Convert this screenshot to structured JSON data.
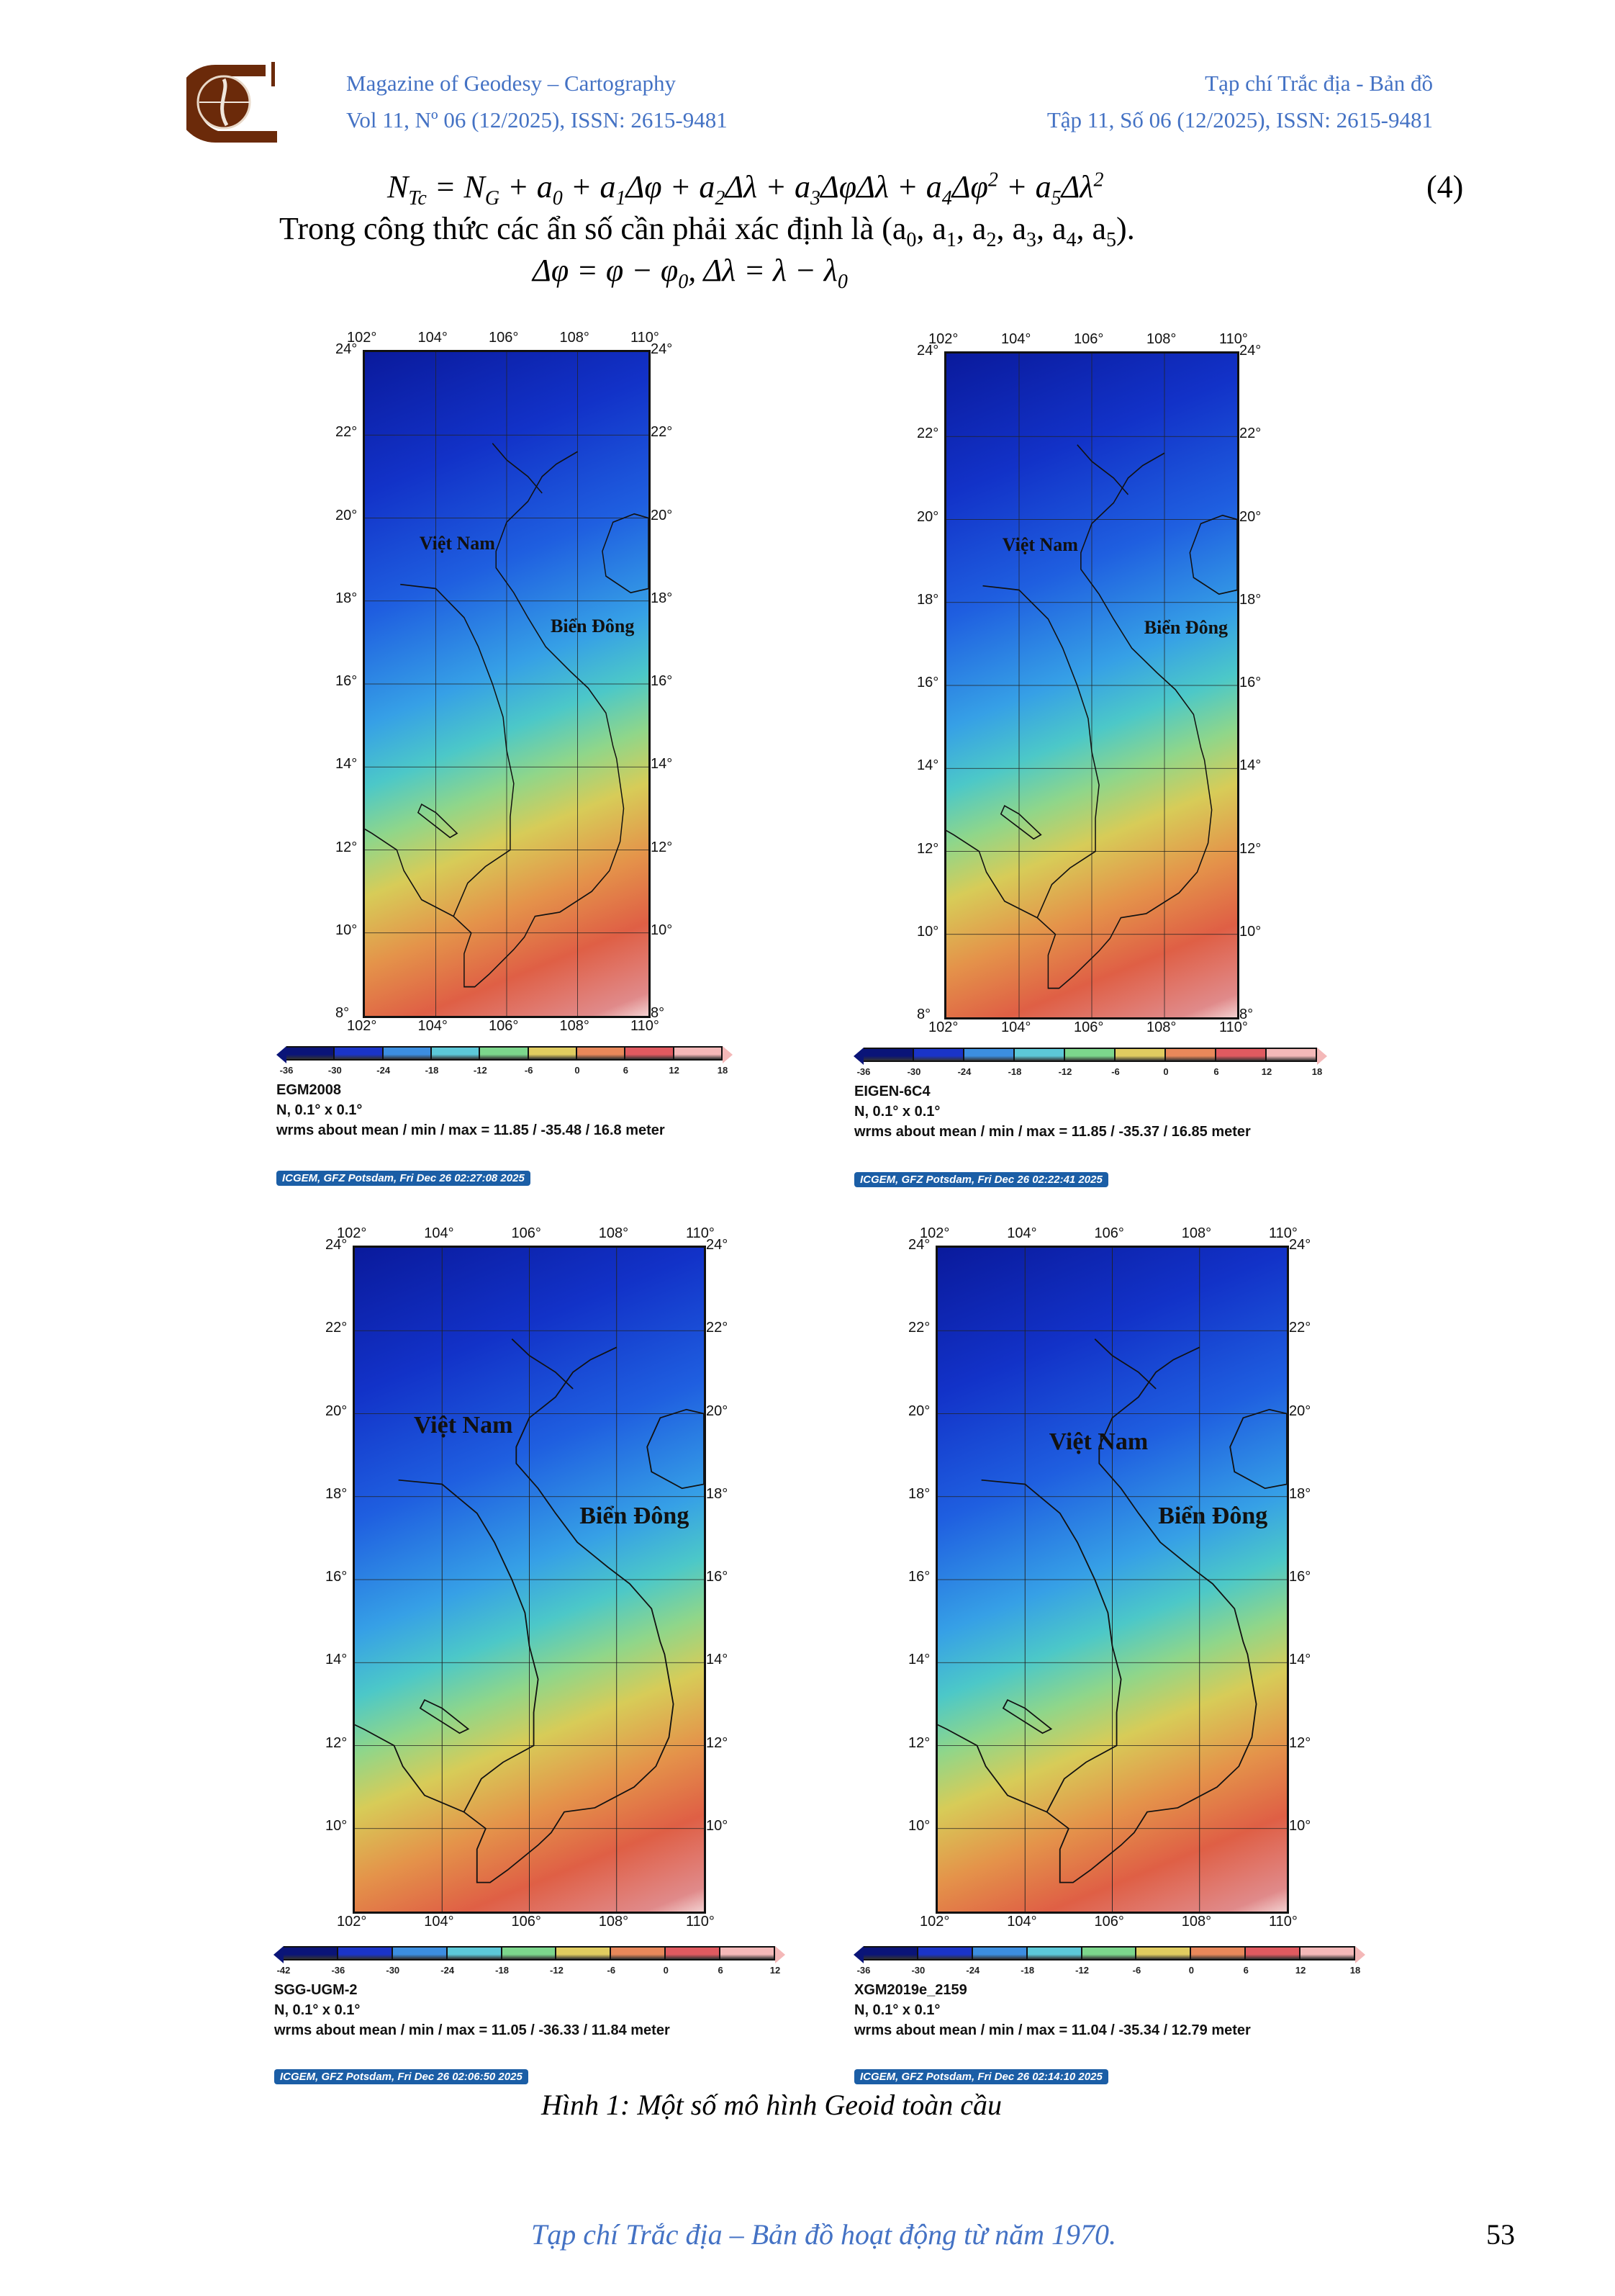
{
  "header": {
    "left_line1": "Magazine of Geodesy – Cartography",
    "left_line2": "Vol 11, Nº 06 (12/2025), ISSN: 2615-9481",
    "right_line1": "Tạp chí Trắc địa - Bản đồ",
    "right_line2": "Tập 11, Số 06 (12/2025), ISSN: 2615-9481"
  },
  "equation": {
    "parts": [
      [
        "N",
        "Tc",
        ""
      ],
      [
        " = N",
        "G",
        ""
      ],
      [
        " + a",
        "0",
        ""
      ],
      [
        " + a",
        "1",
        ""
      ],
      [
        "Δφ",
        "",
        ""
      ],
      [
        " + a",
        "2",
        ""
      ],
      [
        "Δλ",
        "",
        ""
      ],
      [
        " + a",
        "3",
        ""
      ],
      [
        "ΔφΔλ",
        "",
        ""
      ],
      [
        " + a",
        "4",
        ""
      ],
      [
        "Δφ",
        "",
        "2"
      ],
      [
        " + a",
        "5",
        ""
      ],
      [
        "Δλ",
        "",
        "2"
      ]
    ],
    "number": "(4)"
  },
  "body_text": {
    "parts": [
      [
        "Trong công thức các ẩn số cần phải xác định là (a",
        "0"
      ],
      [
        ", a",
        "1"
      ],
      [
        ", a",
        "2"
      ],
      [
        ", a",
        "3"
      ],
      [
        ", a",
        "4"
      ],
      [
        ", a",
        "5"
      ],
      [
        ").",
        ""
      ]
    ]
  },
  "delta_eq": {
    "parts": [
      [
        "Δφ = φ − φ",
        "0"
      ],
      [
        ", Δλ = λ − λ",
        "0"
      ]
    ]
  },
  "maps": [
    {
      "model": "EGM2008",
      "resolution": "N, 0.1° x 0.1°",
      "stats": "wrms about mean / min / max = 11.85 / -35.48 / 16.8 meter",
      "badge": "ICGEM, GFZ Potsdam, Fri Dec 26 02:27:08 2025",
      "label_vn": "Việt Nam",
      "label_sea": "Biển Đông",
      "lon_ticks": [
        "102°",
        "104°",
        "106°",
        "108°",
        "110°"
      ],
      "lat_ticks": [
        "24°",
        "22°",
        "20°",
        "18°",
        "16°",
        "14°",
        "12°",
        "10°",
        "8°"
      ],
      "colorbar_ticks": [
        "-36",
        "-30",
        "-24",
        "-18",
        "-12",
        "-6",
        "0",
        "6",
        "12",
        "18"
      ]
    },
    {
      "model": "EIGEN-6C4",
      "resolution": "N, 0.1° x 0.1°",
      "stats": "wrms about mean / min / max = 11.85 / -35.37 / 16.85 meter",
      "badge": "ICGEM, GFZ Potsdam, Fri Dec 26 02:22:41 2025",
      "label_vn": "Việt Nam",
      "label_sea": "Biển Đông",
      "lon_ticks": [
        "102°",
        "104°",
        "106°",
        "108°",
        "110°"
      ],
      "lat_ticks": [
        "24°",
        "22°",
        "20°",
        "18°",
        "16°",
        "14°",
        "12°",
        "10°",
        "8°"
      ],
      "colorbar_ticks": [
        "-36",
        "-30",
        "-24",
        "-18",
        "-12",
        "-6",
        "0",
        "6",
        "12",
        "18"
      ]
    },
    {
      "model": "SGG-UGM-2",
      "resolution": "N, 0.1° x 0.1°",
      "stats": "wrms about mean / min / max = 11.05 / -36.33 / 11.84 meter",
      "badge": "ICGEM, GFZ Potsdam, Fri Dec 26 02:06:50 2025",
      "label_vn": "Việt Nam",
      "label_sea": "Biển Đông",
      "lon_ticks": [
        "102°",
        "104°",
        "106°",
        "108°",
        "110°"
      ],
      "lat_ticks": [
        "24°",
        "22°",
        "20°",
        "18°",
        "16°",
        "14°",
        "12°",
        "10°"
      ],
      "colorbar_ticks": [
        "-42",
        "-36",
        "-30",
        "-24",
        "-18",
        "-12",
        "-6",
        "0",
        "6",
        "12"
      ]
    },
    {
      "model": "XGM2019e_2159",
      "resolution": "N, 0.1° x 0.1°",
      "stats": "wrms about mean / min / max = 11.04 / -35.34 / 12.79 meter",
      "badge": "ICGEM, GFZ Potsdam, Fri Dec 26 02:14:10 2025",
      "label_vn": "Việt Nam",
      "label_sea": "Biển Đông",
      "lon_ticks": [
        "102°",
        "104°",
        "106°",
        "108°",
        "110°"
      ],
      "lat_ticks": [
        "24°",
        "22°",
        "20°",
        "18°",
        "16°",
        "14°",
        "12°",
        "10°"
      ],
      "colorbar_ticks": [
        "-36",
        "-30",
        "-24",
        "-18",
        "-12",
        "-6",
        "0",
        "6",
        "12",
        "18"
      ]
    }
  ],
  "colorbar_colors": [
    "#0a1478",
    "#1a34c8",
    "#3c8ee0",
    "#5cc8d8",
    "#7cd68c",
    "#e0cc60",
    "#e8885a",
    "#e05a60",
    "#f4b8b8"
  ],
  "caption": "Hình 1: Một số mô hình Geoid toàn cầu",
  "footer": "Tạp chí Trắc địa – Bản đồ hoạt động từ năm 1970.",
  "page_number": "53"
}
